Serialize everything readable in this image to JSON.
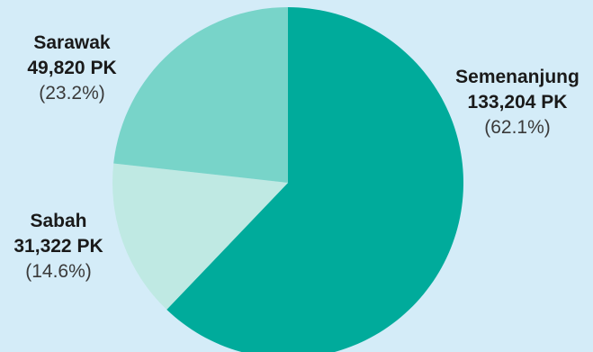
{
  "chart_data": {
    "type": "pie",
    "title": "",
    "slices": [
      {
        "name": "Semenanjung",
        "value": 133204,
        "value_label": "133,204 PK",
        "percent": 62.1,
        "percent_label": "(62.1%)",
        "color": "#00ab9b"
      },
      {
        "name": "Sabah",
        "value": 31322,
        "value_label": "31,322 PK",
        "percent": 14.6,
        "percent_label": "(14.6%)",
        "color": "#bfe9e3"
      },
      {
        "name": "Sarawak",
        "value": 49820,
        "value_label": "49,820 PK",
        "percent": 23.2,
        "percent_label": "(23.2%)",
        "color": "#78d4c9"
      }
    ],
    "start_angle_deg": 0,
    "direction": "clockwise",
    "legend": "none"
  }
}
